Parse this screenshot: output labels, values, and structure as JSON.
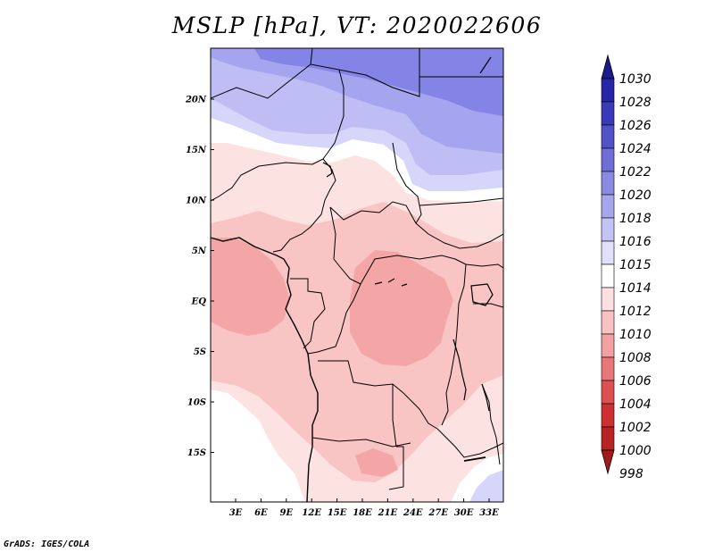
{
  "title": "MSLP [hPa], VT: 2020022606",
  "credit": "GrADS: IGES/COLA",
  "lat_labels": [
    "20N",
    "15N",
    "10N",
    "5N",
    "EQ",
    "5S",
    "10S",
    "15S"
  ],
  "lon_labels": [
    "3E",
    "6E",
    "9E",
    "12E",
    "15E",
    "18E",
    "21E",
    "24E",
    "27E",
    "30E",
    "33E"
  ],
  "colorbar": {
    "labels": [
      "1030",
      "1028",
      "1026",
      "1024",
      "1022",
      "1020",
      "1018",
      "1016",
      "1015",
      "1014",
      "1012",
      "1010",
      "1008",
      "1006",
      "1004",
      "1002",
      "1000",
      "998"
    ],
    "colors": [
      "#1a1a8c",
      "#2626a6",
      "#3a3ab8",
      "#5252c8",
      "#6e6ed6",
      "#8a8ae2",
      "#a6a6ec",
      "#c4c4f4",
      "#e0e0fa",
      "#ffffff",
      "#fde0e0",
      "#f8c2c2",
      "#f2a0a0",
      "#e87878",
      "#dd5050",
      "#cc3030",
      "#b82222",
      "#a31a1a"
    ]
  },
  "field_colors": {
    "p1022": "#8484e6",
    "p1020": "#a4a4ef",
    "p1018": "#bebef5",
    "p1016": "#d6d6fa",
    "p1014": "#ffffff",
    "p1012": "#fde2e2",
    "p1010": "#f9c4c4",
    "p1008": "#f4a6a6"
  }
}
